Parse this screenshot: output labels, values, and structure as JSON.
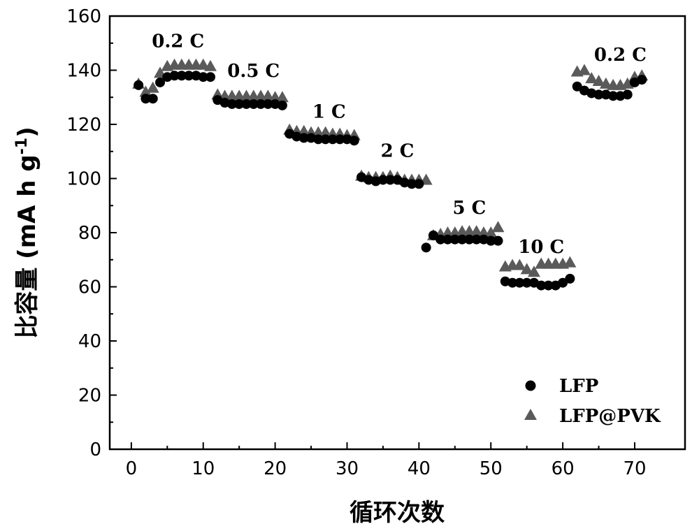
{
  "chart_data": {
    "type": "scatter",
    "xlabel": "循环次数",
    "ylabel_main": "比容量 (mA h g",
    "ylabel_sup": "-1",
    "ylabel_close": ")",
    "xlim": [
      -3,
      77
    ],
    "ylim": [
      0,
      160
    ],
    "xticks": [
      0,
      10,
      20,
      30,
      40,
      50,
      60,
      70
    ],
    "yticks": [
      0,
      20,
      40,
      60,
      80,
      100,
      120,
      140,
      160
    ],
    "grid": false,
    "legend_position": "bottom-right",
    "series": [
      {
        "name": "LFP",
        "marker": "circle",
        "color": "#000000",
        "x": [
          1,
          2,
          3,
          4,
          5,
          6,
          7,
          8,
          9,
          10,
          11,
          12,
          13,
          14,
          15,
          16,
          17,
          18,
          19,
          20,
          21,
          22,
          23,
          24,
          25,
          26,
          27,
          28,
          29,
          30,
          31,
          32,
          33,
          34,
          35,
          36,
          37,
          38,
          39,
          40,
          41,
          42,
          43,
          44,
          45,
          46,
          47,
          48,
          49,
          50,
          51,
          52,
          53,
          54,
          55,
          56,
          57,
          58,
          59,
          60,
          61,
          62,
          63,
          64,
          65,
          66,
          67,
          68,
          69,
          70,
          71
        ],
        "y": [
          134.5,
          129.5,
          129.5,
          135.5,
          137.5,
          138,
          138,
          138,
          138,
          137.5,
          137.5,
          129,
          128,
          127.5,
          127.5,
          127.5,
          127.5,
          127.5,
          127.5,
          127.5,
          127,
          116.5,
          115.5,
          115,
          115,
          114.5,
          114.5,
          114.5,
          114.5,
          114.5,
          114,
          100.5,
          99.5,
          99,
          99.5,
          99.5,
          99.5,
          98.5,
          98,
          98,
          74.5,
          79,
          77.5,
          77.5,
          77.5,
          77.5,
          77.5,
          77.5,
          77.5,
          77,
          77,
          62,
          61.5,
          61.5,
          61.5,
          61.5,
          60.5,
          60.5,
          60.5,
          61.5,
          63,
          134,
          132.5,
          131.5,
          131,
          131,
          130.5,
          130.5,
          131,
          135.5,
          136.5
        ]
      },
      {
        "name": "LFP@PVK",
        "marker": "triangle",
        "color": "#5a5a5a",
        "x": [
          1,
          2,
          3,
          4,
          5,
          6,
          7,
          8,
          9,
          10,
          11,
          12,
          13,
          14,
          15,
          16,
          17,
          18,
          19,
          20,
          21,
          22,
          23,
          24,
          25,
          26,
          27,
          28,
          29,
          30,
          31,
          32,
          33,
          34,
          35,
          36,
          37,
          38,
          39,
          40,
          41,
          42,
          43,
          44,
          45,
          46,
          47,
          48,
          49,
          50,
          51,
          52,
          53,
          54,
          55,
          56,
          57,
          58,
          59,
          60,
          61,
          62,
          63,
          64,
          65,
          66,
          67,
          68,
          69,
          70,
          71
        ],
        "y": [
          135,
          132,
          133.5,
          139,
          141.5,
          142,
          142,
          142,
          142,
          142,
          141.5,
          131,
          130.5,
          130.5,
          130.5,
          130.5,
          130.5,
          130.5,
          130.5,
          130,
          130,
          118,
          117.5,
          117.5,
          117,
          117,
          117,
          116.5,
          116.5,
          116,
          116,
          101,
          100.5,
          100.5,
          100.5,
          101,
          100.5,
          99.5,
          99.5,
          99.5,
          99.5,
          79,
          79.5,
          80,
          80,
          80.5,
          80.5,
          80.5,
          80,
          80,
          82,
          67.5,
          68,
          68,
          66.5,
          65.5,
          68.5,
          68.5,
          68.5,
          68.5,
          69,
          139.5,
          140,
          137,
          136,
          135,
          134.5,
          134.5,
          135,
          137.5,
          138
        ]
      }
    ],
    "annotations": [
      {
        "text": "0.2 C",
        "x": 6.5,
        "y": 148.5
      },
      {
        "text": "0.5 C",
        "x": 17,
        "y": 137.5
      },
      {
        "text": "1 C",
        "x": 27.5,
        "y": 122.5
      },
      {
        "text": "2 C",
        "x": 37,
        "y": 108
      },
      {
        "text": "5 C",
        "x": 47,
        "y": 87
      },
      {
        "text": "10 C",
        "x": 57,
        "y": 72.5
      },
      {
        "text": "0.2 C",
        "x": 68,
        "y": 143.5
      }
    ]
  }
}
